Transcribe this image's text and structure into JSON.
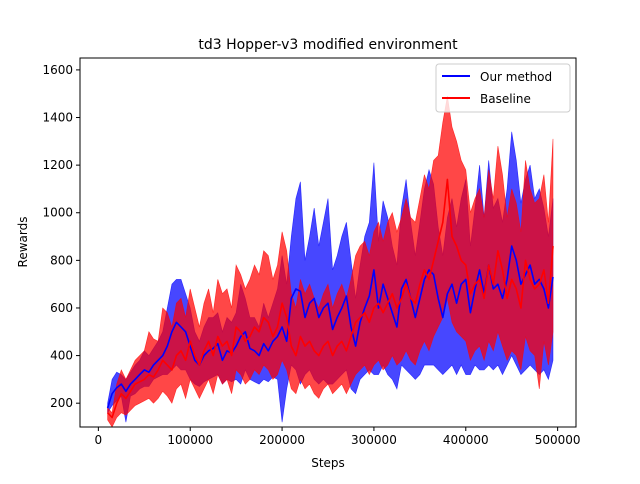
{
  "chart_data": {
    "type": "line",
    "title": "td3 Hopper-v3 modified environment",
    "xlabel": "Steps",
    "ylabel": "Rewards",
    "xlim": [
      -20000,
      520000
    ],
    "ylim": [
      100,
      1650
    ],
    "xticks": [
      0,
      100000,
      200000,
      300000,
      400000,
      500000
    ],
    "xtick_labels": [
      "0",
      "100000",
      "200000",
      "300000",
      "400000",
      "500000"
    ],
    "yticks": [
      200,
      400,
      600,
      800,
      1000,
      1200,
      1400,
      1600
    ],
    "ytick_labels": [
      "200",
      "400",
      "600",
      "800",
      "1000",
      "1200",
      "1400",
      "1600"
    ],
    "grid": false,
    "legend_position": "top-right",
    "x": [
      10000,
      15000,
      20000,
      25000,
      30000,
      35000,
      40000,
      45000,
      50000,
      55000,
      60000,
      65000,
      70000,
      75000,
      80000,
      85000,
      90000,
      95000,
      100000,
      105000,
      110000,
      115000,
      120000,
      125000,
      130000,
      135000,
      140000,
      145000,
      150000,
      155000,
      160000,
      165000,
      170000,
      175000,
      180000,
      185000,
      190000,
      195000,
      200000,
      205000,
      210000,
      215000,
      220000,
      225000,
      230000,
      235000,
      240000,
      245000,
      250000,
      255000,
      260000,
      265000,
      270000,
      275000,
      280000,
      285000,
      290000,
      295000,
      300000,
      305000,
      310000,
      315000,
      320000,
      325000,
      330000,
      335000,
      340000,
      345000,
      350000,
      355000,
      360000,
      365000,
      370000,
      375000,
      380000,
      385000,
      390000,
      395000,
      400000,
      405000,
      410000,
      415000,
      420000,
      425000,
      430000,
      435000,
      440000,
      445000,
      450000,
      455000,
      460000,
      465000,
      470000,
      475000,
      480000,
      485000,
      490000,
      495000
    ],
    "series": [
      {
        "name": "Our method",
        "color": "#0000ff",
        "band_color": "#0000ff",
        "mean": [
          180,
          240,
          265,
          280,
          250,
          280,
          300,
          320,
          340,
          330,
          360,
          380,
          400,
          440,
          500,
          540,
          520,
          500,
          440,
          380,
          360,
          400,
          420,
          430,
          450,
          380,
          420,
          410,
          440,
          480,
          500,
          430,
          420,
          400,
          450,
          420,
          460,
          480,
          520,
          460,
          640,
          680,
          670,
          560,
          620,
          640,
          560,
          600,
          620,
          510,
          560,
          600,
          650,
          520,
          440,
          540,
          600,
          650,
          760,
          600,
          700,
          640,
          580,
          520,
          680,
          720,
          640,
          560,
          640,
          720,
          760,
          740,
          640,
          560,
          660,
          700,
          620,
          700,
          720,
          580,
          680,
          760,
          660,
          780,
          680,
          700,
          640,
          720,
          860,
          800,
          700,
          740,
          780,
          700,
          720,
          680,
          600,
          730
        ],
        "upper": [
          200,
          300,
          330,
          320,
          300,
          330,
          360,
          380,
          420,
          400,
          430,
          460,
          500,
          600,
          700,
          720,
          720,
          660,
          600,
          500,
          460,
          520,
          560,
          560,
          580,
          500,
          560,
          540,
          580,
          700,
          640,
          560,
          560,
          520,
          620,
          560,
          620,
          680,
          820,
          700,
          900,
          1060,
          1130,
          800,
          900,
          1020,
          860,
          960,
          1060,
          760,
          820,
          900,
          960,
          800,
          640,
          780,
          900,
          960,
          1210,
          880,
          1050,
          980,
          860,
          780,
          1020,
          1140,
          960,
          820,
          960,
          1100,
          1180,
          1120,
          940,
          820,
          980,
          1060,
          940,
          1060,
          1140,
          860,
          1020,
          1200,
          980,
          1220,
          1020,
          1060,
          960,
          1100,
          1340,
          1220,
          1040,
          1140,
          1200,
          1060,
          1100,
          1020,
          900,
          1060
        ],
        "lower": [
          160,
          190,
          210,
          230,
          120,
          230,
          240,
          260,
          270,
          270,
          300,
          310,
          320,
          320,
          340,
          360,
          340,
          340,
          300,
          280,
          270,
          290,
          300,
          310,
          320,
          280,
          300,
          290,
          300,
          280,
          340,
          300,
          290,
          280,
          300,
          290,
          310,
          300,
          120,
          260,
          360,
          340,
          280,
          320,
          340,
          300,
          280,
          300,
          280,
          280,
          300,
          320,
          340,
          260,
          240,
          300,
          320,
          340,
          320,
          320,
          360,
          320,
          300,
          260,
          360,
          340,
          320,
          300,
          320,
          360,
          360,
          360,
          340,
          320,
          340,
          360,
          320,
          360,
          320,
          320,
          360,
          340,
          340,
          360,
          340,
          360,
          320,
          360,
          400,
          360,
          320,
          340,
          360,
          340,
          320,
          340,
          300,
          380
        ]
      },
      {
        "name": "Baseline",
        "color": "#ff0000",
        "band_color": "#ff0000",
        "mean": [
          160,
          140,
          200,
          240,
          220,
          250,
          280,
          290,
          300,
          320,
          310,
          340,
          380,
          360,
          340,
          400,
          420,
          380,
          460,
          400,
          360,
          420,
          460,
          400,
          480,
          440,
          460,
          400,
          520,
          500,
          460,
          480,
          520,
          500,
          560,
          540,
          480,
          520,
          620,
          560,
          440,
          400,
          480,
          440,
          460,
          420,
          400,
          440,
          460,
          400,
          440,
          460,
          420,
          480,
          540,
          560,
          580,
          540,
          600,
          620,
          580,
          620,
          660,
          600,
          640,
          700,
          640,
          620,
          700,
          760,
          720,
          800,
          880,
          960,
          1140,
          900,
          860,
          800,
          780,
          660,
          700,
          720,
          640,
          780,
          700,
          840,
          760,
          640,
          720,
          680,
          600,
          800,
          720,
          680,
          700,
          760,
          620,
          860
        ],
        "upper": [
          180,
          160,
          280,
          340,
          300,
          340,
          380,
          400,
          420,
          500,
          470,
          460,
          600,
          580,
          520,
          620,
          640,
          560,
          680,
          600,
          520,
          620,
          680,
          580,
          720,
          660,
          680,
          600,
          780,
          740,
          680,
          720,
          780,
          740,
          840,
          820,
          720,
          780,
          920,
          840,
          660,
          600,
          720,
          660,
          700,
          640,
          600,
          660,
          700,
          600,
          660,
          700,
          640,
          720,
          820,
          860,
          880,
          820,
          920,
          960,
          880,
          960,
          1000,
          920,
          980,
          1060,
          980,
          960,
          1060,
          1160,
          1100,
          1220,
          1240,
          1380,
          1490,
          1360,
          1300,
          1220,
          1180,
          1000,
          1060,
          1100,
          980,
          1180,
          1060,
          1280,
          1160,
          980,
          1100,
          1040,
          920,
          1220,
          1100,
          1040,
          1060,
          1160,
          960,
          1310
        ],
        "lower": [
          130,
          100,
          140,
          160,
          150,
          170,
          190,
          200,
          210,
          220,
          200,
          220,
          250,
          230,
          200,
          260,
          280,
          220,
          300,
          260,
          220,
          260,
          300,
          240,
          320,
          280,
          300,
          240,
          340,
          320,
          280,
          300,
          340,
          320,
          360,
          340,
          300,
          320,
          380,
          340,
          260,
          240,
          300,
          260,
          280,
          240,
          220,
          260,
          280,
          240,
          260,
          280,
          240,
          280,
          320,
          340,
          360,
          320,
          360,
          380,
          340,
          360,
          400,
          360,
          380,
          420,
          380,
          360,
          420,
          460,
          420,
          480,
          520,
          560,
          640,
          540,
          500,
          480,
          460,
          380,
          420,
          440,
          380,
          460,
          420,
          500,
          440,
          380,
          420,
          400,
          340,
          480,
          420,
          400,
          260,
          460,
          360,
          500
        ]
      }
    ]
  }
}
